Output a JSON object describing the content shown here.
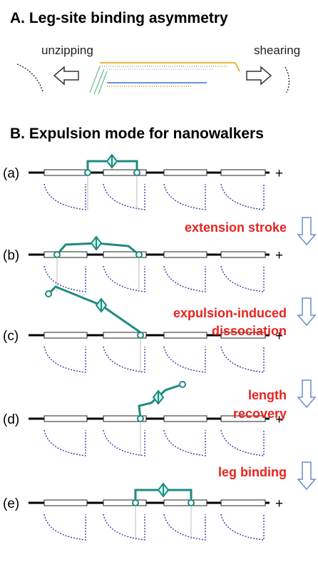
{
  "panel_a": {
    "title": "A. Leg-site binding asymmetry",
    "left_label": "unzipping",
    "right_label": "shearing"
  },
  "panel_b": {
    "title": "B. Expulsion mode for nanowalkers",
    "rows": [
      {
        "label": "(a)",
        "end": "+"
      },
      {
        "label": "(b)",
        "end": "+"
      },
      {
        "label": "(c)",
        "end": "+"
      },
      {
        "label": "(d)",
        "end": "+"
      },
      {
        "label": "(e)",
        "end": "+"
      }
    ],
    "steps": [
      {
        "lines": [
          "extension stroke"
        ]
      },
      {
        "lines": [
          "expulsion-induced",
          "dissociation"
        ]
      },
      {
        "lines": [
          "length",
          "recovery"
        ]
      },
      {
        "lines": [
          "leg binding"
        ]
      }
    ]
  }
}
